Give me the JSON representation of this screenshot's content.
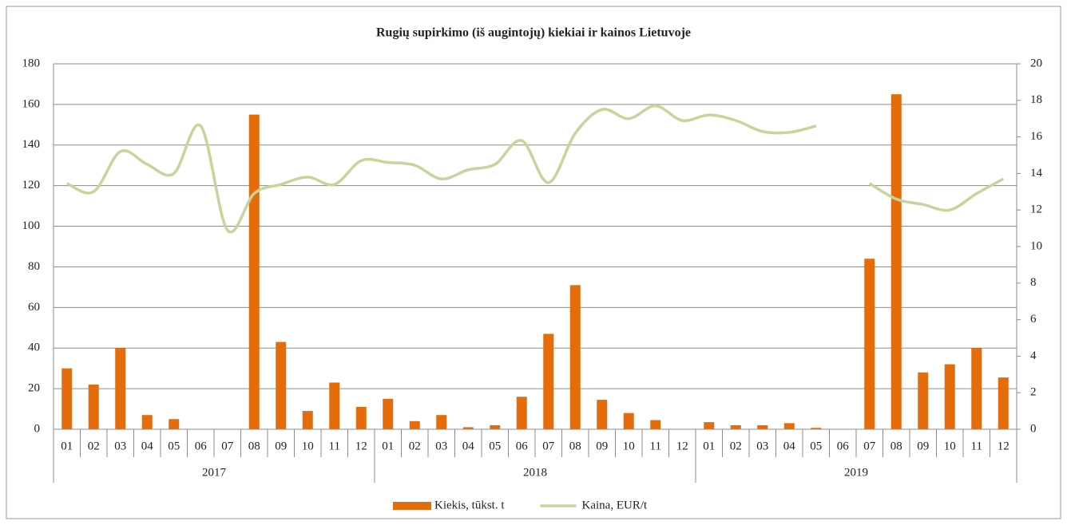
{
  "chart_data": {
    "type": "bar-line",
    "title": "Rugių supirkimo (iš augintojų) kiekiai ir kainos Lietuvoje",
    "groups": [
      {
        "name": "2017",
        "categories": [
          "01",
          "02",
          "03",
          "04",
          "05",
          "06",
          "07",
          "08",
          "09",
          "10",
          "11",
          "12"
        ]
      },
      {
        "name": "2018",
        "categories": [
          "01",
          "02",
          "03",
          "04",
          "05",
          "06",
          "07",
          "08",
          "09",
          "10",
          "11",
          "12"
        ]
      },
      {
        "name": "2019",
        "categories": [
          "01",
          "02",
          "03",
          "04",
          "05",
          "06",
          "07",
          "08",
          "09",
          "10",
          "11",
          "12"
        ]
      }
    ],
    "series": [
      {
        "name": "Kiekis, tūkst. t",
        "type": "bar",
        "color": "#e46c0a",
        "axis": "y",
        "values": [
          30,
          22,
          40,
          7,
          5,
          null,
          null,
          155,
          43,
          9,
          23,
          11,
          15,
          4,
          7,
          1,
          2,
          16,
          47,
          71,
          14.5,
          8,
          4.5,
          null,
          3.5,
          2,
          2,
          3,
          0.7,
          null,
          84,
          165,
          28,
          32,
          40,
          25.5
        ]
      },
      {
        "name": "Kaina, EUR/t",
        "type": "line",
        "color": "#c3d69b",
        "axis": "y2",
        "values": [
          13.45,
          13.0,
          15.2,
          14.5,
          14.0,
          16.6,
          10.9,
          12.9,
          13.4,
          13.8,
          13.4,
          14.7,
          14.6,
          14.45,
          13.7,
          14.2,
          14.5,
          15.8,
          13.5,
          16.2,
          17.5,
          17.0,
          17.7,
          16.9,
          17.2,
          16.9,
          16.3,
          16.25,
          16.6,
          null,
          13.45,
          12.6,
          12.3,
          12.0,
          12.9,
          13.7
        ]
      }
    ],
    "ylim": [
      0,
      180
    ],
    "yticks": [
      0,
      20,
      40,
      60,
      80,
      100,
      120,
      140,
      160,
      180
    ],
    "y2lim": [
      0,
      20
    ],
    "y2ticks": [
      0,
      2,
      4,
      6,
      8,
      10,
      12,
      14,
      16,
      18,
      20
    ],
    "grid": true,
    "legend": "bottom"
  }
}
